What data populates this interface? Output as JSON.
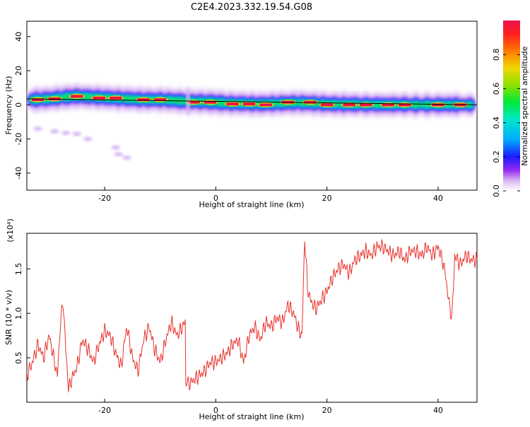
{
  "chart_data": [
    {
      "type": "heatmap",
      "title": "C2E4.2023.332.19.54.G08",
      "xlabel": "Height of straight line (km)",
      "ylabel": "Frequency (Hz)",
      "xlim": [
        -34,
        47
      ],
      "ylim": [
        -50,
        49
      ],
      "xticks": [
        -20,
        0,
        20,
        40
      ],
      "yticks": [
        -40,
        -20,
        0,
        20,
        40
      ],
      "colorbar": {
        "label": "Normalized spectral amplitude",
        "range": [
          0,
          1
        ],
        "ticks": [
          "0.0",
          "0.2",
          "0.4",
          "0.6",
          "0.8"
        ]
      },
      "fit_line": {
        "from": [
          -34,
          3.5
        ],
        "to": [
          47,
          0
        ]
      },
      "band_center": [
        [
          -33,
          3
        ],
        [
          -30,
          3.5
        ],
        [
          -27,
          4.5
        ],
        [
          -25,
          5
        ],
        [
          -22,
          4.5
        ],
        [
          -19,
          4
        ],
        [
          -16,
          3.5
        ],
        [
          -13,
          3
        ],
        [
          -10,
          3
        ],
        [
          -7,
          2.5
        ],
        [
          -5,
          2
        ],
        [
          -2,
          1.8
        ],
        [
          0,
          1.5
        ],
        [
          2,
          1
        ],
        [
          5,
          0.8
        ],
        [
          8,
          0.5
        ],
        [
          11,
          0.8
        ],
        [
          14,
          1.2
        ],
        [
          17,
          1
        ],
        [
          20,
          0.5
        ],
        [
          23,
          0.3
        ],
        [
          26,
          0.2
        ],
        [
          30,
          0.1
        ],
        [
          34,
          0.1
        ],
        [
          38,
          0
        ],
        [
          42,
          0
        ],
        [
          47,
          0
        ]
      ],
      "hot_spots": [
        [
          -32,
          3
        ],
        [
          -29,
          3.5
        ],
        [
          -25,
          5
        ],
        [
          -21,
          4
        ],
        [
          -18,
          4
        ],
        [
          -13,
          3
        ],
        [
          -10,
          3
        ],
        [
          -4,
          1.5
        ],
        [
          -1,
          1.5
        ],
        [
          3,
          0.5
        ],
        [
          6,
          0.5
        ],
        [
          9,
          0
        ],
        [
          13,
          1.5
        ],
        [
          17,
          1.5
        ],
        [
          20,
          0
        ],
        [
          24,
          0
        ],
        [
          27,
          0
        ],
        [
          31,
          0
        ],
        [
          34,
          0
        ],
        [
          40,
          0
        ],
        [
          44,
          0
        ]
      ],
      "scattered_patches": [
        [
          -32,
          -14
        ],
        [
          -29,
          -15.5
        ],
        [
          -27,
          -16.5
        ],
        [
          -25,
          -17
        ],
        [
          -23,
          -20
        ],
        [
          -18,
          -25
        ],
        [
          -17.5,
          -29
        ],
        [
          -16,
          -31
        ]
      ]
    },
    {
      "type": "line",
      "title": "",
      "xlabel": "Height of straight line (km)",
      "ylabel": "SNR (10 * v/v)",
      "multiplier": "(x10⁴)",
      "xlim": [
        -34,
        47
      ],
      "ylim": [
        0,
        19000
      ],
      "xticks": [
        -20,
        0,
        20,
        40
      ],
      "yticks": [
        5000,
        10000,
        15000
      ],
      "ytick_labels": [
        "0.5",
        "1.0",
        "1.5"
      ],
      "series": [
        {
          "color": "#e8332e",
          "x": [
            -34,
            -33,
            -32,
            -31,
            -30,
            -29,
            -28.5,
            -28,
            -27.5,
            -27,
            -26.5,
            -26,
            -25,
            -24,
            -23,
            -22,
            -21,
            -20,
            -19,
            -18,
            -17,
            -16.5,
            -16,
            -15,
            -14,
            -13,
            -12,
            -11,
            -10,
            -9,
            -8,
            -7,
            -6,
            -5.5,
            -5.4,
            -5,
            -4,
            -3,
            -2,
            -1,
            0,
            1,
            2,
            3,
            4,
            5,
            6,
            7,
            8,
            9,
            10,
            11,
            12,
            13,
            14,
            15,
            15.5,
            16,
            16.5,
            17,
            18,
            19,
            20,
            21,
            22,
            23,
            24,
            25,
            26,
            27,
            28,
            29,
            30,
            31,
            32,
            33,
            34,
            35,
            36,
            37,
            38,
            39,
            40,
            41,
            41.5,
            42,
            42.5,
            43,
            44,
            45,
            46,
            47
          ],
          "y": [
            3000,
            4500,
            6500,
            5000,
            7500,
            4500,
            3000,
            8500,
            11500,
            6000,
            1500,
            2500,
            4000,
            7000,
            6000,
            4500,
            6500,
            8000,
            7500,
            5500,
            4000,
            6500,
            8500,
            5000,
            3500,
            7000,
            8500,
            6000,
            4500,
            7000,
            9000,
            7500,
            8500,
            9000,
            2000,
            2000,
            2500,
            3000,
            3500,
            4500,
            4500,
            5000,
            5500,
            6500,
            7000,
            4500,
            7500,
            8500,
            7000,
            9000,
            8500,
            9500,
            9000,
            11000,
            10000,
            8000,
            7500,
            18500,
            13000,
            11500,
            10500,
            11500,
            12500,
            14000,
            15000,
            15500,
            14500,
            16000,
            16500,
            17000,
            16500,
            17500,
            17500,
            17000,
            16500,
            17000,
            16000,
            17000,
            17000,
            16500,
            17500,
            16500,
            17500,
            15500,
            13500,
            11000,
            9500,
            16500,
            15500,
            16500,
            16000,
            16000
          ]
        }
      ]
    }
  ]
}
